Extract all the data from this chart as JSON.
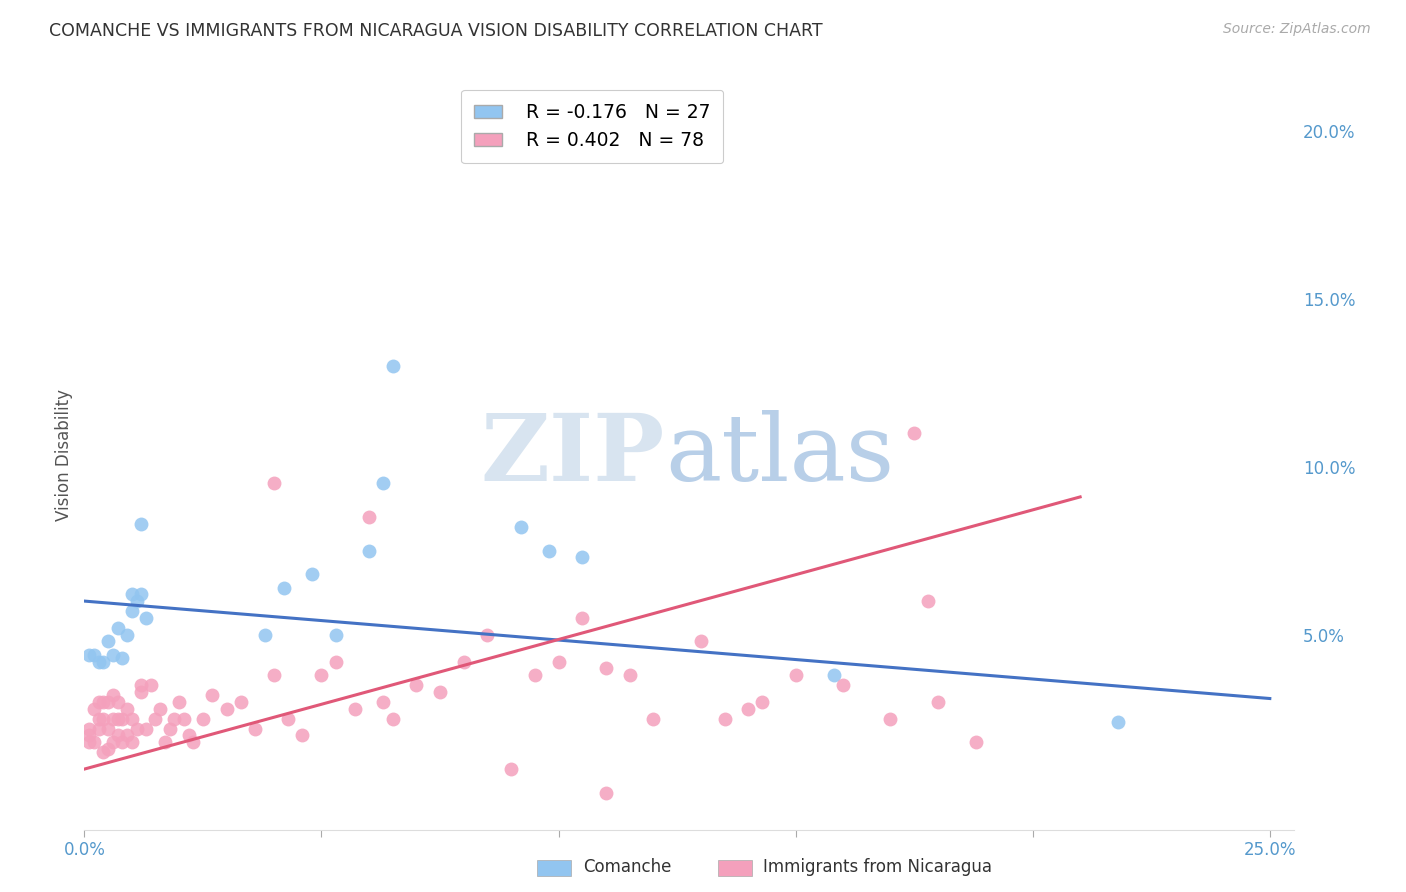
{
  "title": "COMANCHE VS IMMIGRANTS FROM NICARAGUA VISION DISABILITY CORRELATION CHART",
  "source": "Source: ZipAtlas.com",
  "ylabel": "Vision Disability",
  "xlim": [
    0.0,
    0.255
  ],
  "ylim": [
    -0.008,
    0.215
  ],
  "xtick_positions": [
    0.0,
    0.05,
    0.1,
    0.15,
    0.2,
    0.25
  ],
  "xtick_labels": [
    "0.0%",
    "",
    "",
    "",
    "",
    "25.0%"
  ],
  "ytick_positions": [
    0.05,
    0.1,
    0.15,
    0.2
  ],
  "ytick_labels": [
    "5.0%",
    "10.0%",
    "15.0%",
    "20.0%"
  ],
  "grid_color": "#c8c8c8",
  "bg_color": "#ffffff",
  "legend_R1": "R = -0.176",
  "legend_N1": "N = 27",
  "legend_R2": "R = 0.402",
  "legend_N2": "N = 78",
  "color_blue": "#92C5F0",
  "color_pink": "#F4A0BC",
  "color_blue_line": "#4472C4",
  "color_pink_line": "#E05878",
  "tick_color": "#5599CC",
  "comanche_x": [
    0.001,
    0.002,
    0.003,
    0.004,
    0.005,
    0.006,
    0.007,
    0.008,
    0.009,
    0.01,
    0.011,
    0.012,
    0.013,
    0.038,
    0.042,
    0.048,
    0.053,
    0.063,
    0.092,
    0.098,
    0.105,
    0.158,
    0.218,
    0.01,
    0.012,
    0.06,
    0.065
  ],
  "comanche_y": [
    0.044,
    0.044,
    0.042,
    0.042,
    0.048,
    0.044,
    0.052,
    0.043,
    0.05,
    0.057,
    0.06,
    0.062,
    0.055,
    0.05,
    0.064,
    0.068,
    0.05,
    0.095,
    0.082,
    0.075,
    0.073,
    0.038,
    0.024,
    0.062,
    0.083,
    0.075,
    0.13
  ],
  "nicaragua_x": [
    0.001,
    0.001,
    0.001,
    0.002,
    0.002,
    0.003,
    0.003,
    0.003,
    0.004,
    0.004,
    0.004,
    0.005,
    0.005,
    0.005,
    0.006,
    0.006,
    0.006,
    0.007,
    0.007,
    0.007,
    0.008,
    0.008,
    0.009,
    0.009,
    0.01,
    0.01,
    0.011,
    0.012,
    0.013,
    0.014,
    0.015,
    0.016,
    0.017,
    0.018,
    0.019,
    0.02,
    0.021,
    0.022,
    0.023,
    0.025,
    0.027,
    0.03,
    0.033,
    0.036,
    0.04,
    0.043,
    0.046,
    0.05,
    0.053,
    0.057,
    0.06,
    0.063,
    0.065,
    0.07,
    0.075,
    0.08,
    0.085,
    0.09,
    0.095,
    0.1,
    0.105,
    0.11,
    0.115,
    0.12,
    0.13,
    0.135,
    0.14,
    0.143,
    0.15,
    0.16,
    0.17,
    0.175,
    0.178,
    0.18,
    0.188,
    0.012,
    0.04,
    0.11
  ],
  "nicaragua_y": [
    0.02,
    0.018,
    0.022,
    0.018,
    0.028,
    0.022,
    0.025,
    0.03,
    0.015,
    0.025,
    0.03,
    0.016,
    0.022,
    0.03,
    0.018,
    0.025,
    0.032,
    0.02,
    0.025,
    0.03,
    0.018,
    0.025,
    0.02,
    0.028,
    0.018,
    0.025,
    0.022,
    0.033,
    0.022,
    0.035,
    0.025,
    0.028,
    0.018,
    0.022,
    0.025,
    0.03,
    0.025,
    0.02,
    0.018,
    0.025,
    0.032,
    0.028,
    0.03,
    0.022,
    0.038,
    0.025,
    0.02,
    0.038,
    0.042,
    0.028,
    0.085,
    0.03,
    0.025,
    0.035,
    0.033,
    0.042,
    0.05,
    0.01,
    0.038,
    0.042,
    0.055,
    0.04,
    0.038,
    0.025,
    0.048,
    0.025,
    0.028,
    0.03,
    0.038,
    0.035,
    0.025,
    0.11,
    0.06,
    0.03,
    0.018,
    0.035,
    0.095,
    0.003
  ],
  "trend_blue_x0": 0.0,
  "trend_blue_y0": 0.06,
  "trend_blue_x1": 0.25,
  "trend_blue_y1": 0.031,
  "trend_pink_x0": 0.0,
  "trend_pink_y0": 0.01,
  "trend_pink_x1": 0.21,
  "trend_pink_y1": 0.091
}
